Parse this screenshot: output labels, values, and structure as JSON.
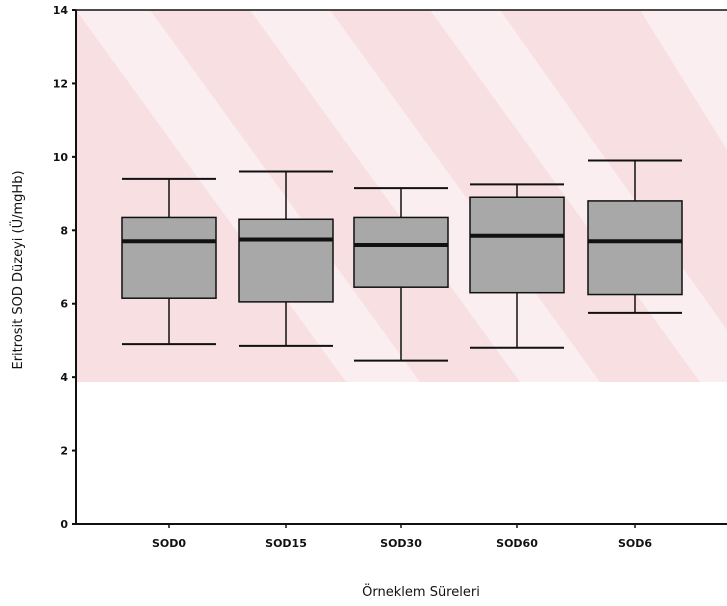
{
  "chart_data": {
    "type": "box",
    "title": "",
    "xlabel": "Örneklem Süreleri",
    "ylabel": "Eritrosit SOD Düzeyi (Ü/mgHb)",
    "ylim": [
      0,
      14
    ],
    "yticks": [
      "0",
      "2",
      "4",
      "6",
      "8",
      "10",
      "12",
      "14"
    ],
    "grid": false,
    "categories": [
      "SOD0",
      "SOD15",
      "SOD30",
      "SOD60",
      "SOD6"
    ],
    "boxes": [
      {
        "label": "SOD0",
        "min": 4.9,
        "q1": 6.15,
        "median": 7.7,
        "q3": 8.35,
        "max": 9.4
      },
      {
        "label": "SOD15",
        "min": 4.85,
        "q1": 6.05,
        "median": 7.75,
        "q3": 8.3,
        "max": 9.6
      },
      {
        "label": "SOD30",
        "min": 4.45,
        "q1": 6.45,
        "median": 7.6,
        "q3": 8.35,
        "max": 9.15
      },
      {
        "label": "SOD60",
        "min": 4.8,
        "q1": 6.3,
        "median": 7.85,
        "q3": 8.9,
        "max": 9.25
      },
      {
        "label": "SOD6",
        "min": 5.75,
        "q1": 6.25,
        "median": 7.7,
        "q3": 8.8,
        "max": 9.9
      }
    ],
    "colors": {
      "box_fill": "#a8a8a8",
      "line": "#111111",
      "watermark": "#f6dadd"
    }
  }
}
